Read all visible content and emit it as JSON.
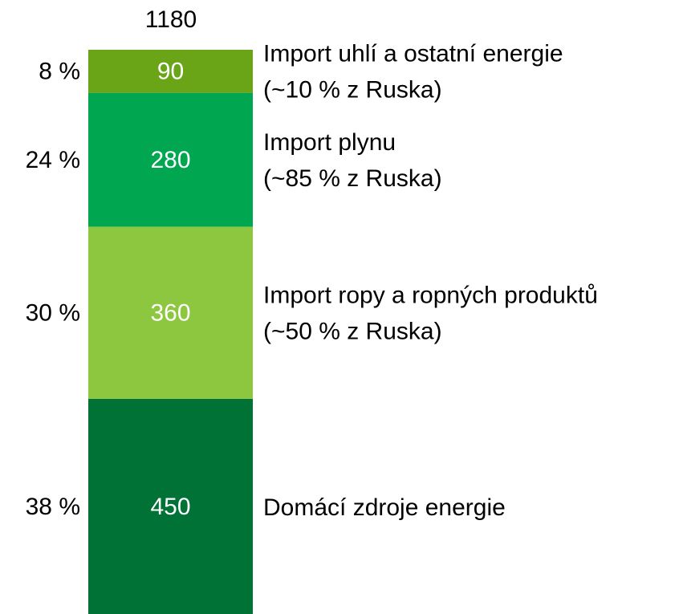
{
  "chart_data": {
    "type": "stacked_bar",
    "total": 1180,
    "series": [
      {
        "name": "Domácí zdroje energie",
        "color": "#007236",
        "values": [
          450
        ],
        "share": 38,
        "share_label": "38 %"
      },
      {
        "name": "Import ropy a ropných produktů",
        "note": "(~50 % z Ruska)",
        "color": "#8dc63f",
        "values": [
          360
        ],
        "share": 30,
        "share_label": "30 %"
      },
      {
        "name": "Import plynu",
        "note": "(~85 % z Ruska)",
        "color": "#00a650",
        "values": [
          280
        ],
        "share": 24,
        "share_label": "24 %"
      },
      {
        "name": "Import uhlí a ostatní energie",
        "note": "(~10 % z Ruska)",
        "color": "#6aa517",
        "values": [
          90
        ],
        "share": 8,
        "share_label": "8 %"
      }
    ]
  }
}
